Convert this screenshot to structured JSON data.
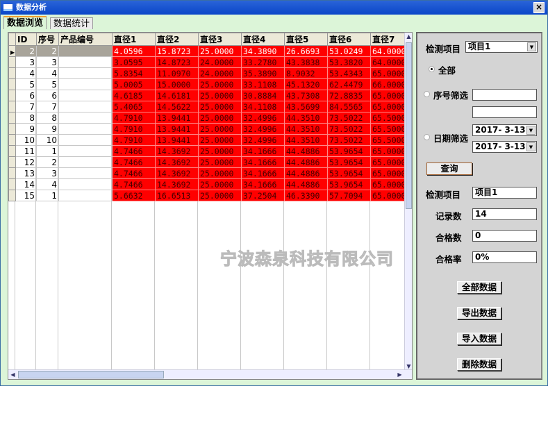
{
  "window": {
    "title": "数据分析",
    "close": "×"
  },
  "tabs": [
    {
      "label": "数据浏览",
      "active": true
    },
    {
      "label": "数据统计",
      "active": false
    }
  ],
  "grid": {
    "columns": [
      "ID",
      "序号",
      "产品编号",
      "直径1",
      "直径2",
      "直径3",
      "直径4",
      "直径5",
      "直径6",
      "直径7"
    ],
    "rows": [
      [
        "2",
        "2",
        "",
        "4.0596",
        "15.8723",
        "25.0000",
        "34.3890",
        "26.6693",
        "53.0249",
        "64.0000"
      ],
      [
        "3",
        "3",
        "",
        "3.0595",
        "14.8723",
        "24.0000",
        "33.2780",
        "43.3838",
        "53.3820",
        "64.0000"
      ],
      [
        "4",
        "4",
        "",
        "5.8354",
        "11.0970",
        "24.0000",
        "35.3890",
        "8.9032",
        "53.4343",
        "65.0000"
      ],
      [
        "5",
        "5",
        "",
        "5.0005",
        "15.0000",
        "25.0000",
        "33.1108",
        "45.1320",
        "62.4479",
        "66.0000"
      ],
      [
        "6",
        "6",
        "",
        "4.6185",
        "14.6181",
        "25.0000",
        "30.8884",
        "43.7308",
        "72.8835",
        "65.0000"
      ],
      [
        "7",
        "7",
        "",
        "5.4065",
        "14.5622",
        "25.0000",
        "34.1108",
        "43.5699",
        "84.5565",
        "65.0000"
      ],
      [
        "8",
        "8",
        "",
        "4.7910",
        "13.9441",
        "25.0000",
        "32.4996",
        "44.3510",
        "73.5022",
        "65.5000"
      ],
      [
        "9",
        "9",
        "",
        "4.7910",
        "13.9441",
        "25.0000",
        "32.4996",
        "44.3510",
        "73.5022",
        "65.5000"
      ],
      [
        "10",
        "10",
        "",
        "4.7910",
        "13.9441",
        "25.0000",
        "32.4996",
        "44.3510",
        "73.5022",
        "65.5000"
      ],
      [
        "11",
        "1",
        "",
        "4.7466",
        "14.3692",
        "25.0000",
        "34.1666",
        "44.4886",
        "53.9654",
        "65.0000"
      ],
      [
        "12",
        "2",
        "",
        "4.7466",
        "14.3692",
        "25.0000",
        "34.1666",
        "44.4886",
        "53.9654",
        "65.0000"
      ],
      [
        "13",
        "3",
        "",
        "4.7466",
        "14.3692",
        "25.0000",
        "34.1666",
        "44.4886",
        "53.9654",
        "65.0000"
      ],
      [
        "14",
        "4",
        "",
        "4.7466",
        "14.3692",
        "25.0000",
        "34.1666",
        "44.4886",
        "53.9654",
        "65.0000"
      ],
      [
        "15",
        "1",
        "",
        "5.6632",
        "16.6513",
        "25.0000",
        "37.2504",
        "46.3390",
        "57.7094",
        "65.0000"
      ]
    ],
    "selected_row": 0,
    "highlight_color": "#ff0000",
    "watermark": "宁波森泉科技有限公司"
  },
  "filter": {
    "item_label": "检测项目",
    "item_value": "项目1",
    "radio_all": "全部",
    "radio_seq": "序号筛选",
    "radio_date": "日期筛选",
    "seq_from": "",
    "seq_to": "",
    "date_from": "2017- 3-13",
    "date_to": "2017- 3-13",
    "query_button": "查询"
  },
  "stats": {
    "item_label": "检测项目",
    "item_value": "项目1",
    "count_label": "记录数",
    "count_value": "14",
    "pass_label": "合格数",
    "pass_value": "0",
    "rate_label": "合格率",
    "rate_value": "0%"
  },
  "actions": [
    "全部数据",
    "导出数据",
    "导入数据",
    "删除数据"
  ]
}
